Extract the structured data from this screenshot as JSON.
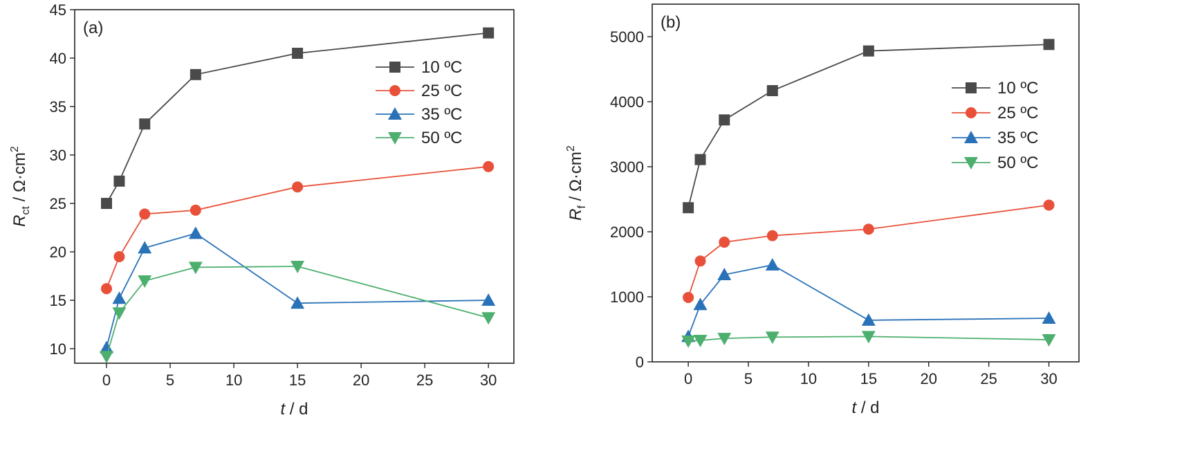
{
  "chart_data": [
    {
      "type": "line",
      "panel_label": "(a)",
      "ylabel": {
        "symbol": "R",
        "sub": "ct",
        "unit_prefix": " / Ω·cm",
        "sup": "2"
      },
      "xlabel": {
        "symbol": "t",
        "unit": " / d"
      },
      "xlim": [
        -2.5,
        32
      ],
      "ylim": [
        8.5,
        45
      ],
      "xticks": [
        0,
        5,
        10,
        15,
        20,
        25,
        30
      ],
      "yticks": [
        10,
        15,
        20,
        25,
        30,
        35,
        40,
        45
      ],
      "x": [
        0,
        1,
        3,
        7,
        15,
        30
      ],
      "legend_position": "top-right",
      "series": [
        {
          "name": "10 ºC",
          "color": "#4a4a4a",
          "marker": "square",
          "values": [
            25.0,
            27.3,
            33.2,
            38.3,
            40.5,
            42.6
          ]
        },
        {
          "name": "25 ºC",
          "color": "#e8503a",
          "marker": "circle",
          "values": [
            16.2,
            19.5,
            23.9,
            24.3,
            26.7,
            28.8
          ]
        },
        {
          "name": "35 ºC",
          "color": "#2a72b8",
          "marker": "triangle-up",
          "values": [
            10.1,
            15.2,
            20.4,
            21.9,
            14.7,
            15.0
          ]
        },
        {
          "name": "50 ºC",
          "color": "#4daf6e",
          "marker": "triangle-down",
          "values": [
            9.2,
            13.7,
            17.0,
            18.4,
            18.5,
            13.2
          ]
        }
      ]
    },
    {
      "type": "line",
      "panel_label": "(b)",
      "ylabel": {
        "symbol": "R",
        "sub": "f",
        "unit_prefix": " / Ω·cm",
        "sup": "2"
      },
      "xlabel": {
        "symbol": "t",
        "unit": " / d"
      },
      "xlim": [
        -3,
        32.5
      ],
      "ylim": [
        0,
        5500
      ],
      "xticks": [
        0,
        5,
        10,
        15,
        20,
        25,
        30
      ],
      "yticks": [
        0,
        1000,
        2000,
        3000,
        4000,
        5000
      ],
      "x": [
        0,
        1,
        3,
        7,
        15,
        30
      ],
      "legend_position": "top-right",
      "series": [
        {
          "name": "10 ºC",
          "color": "#4a4a4a",
          "marker": "square",
          "values": [
            2370,
            3110,
            3720,
            4170,
            4780,
            4880
          ]
        },
        {
          "name": "25 ºC",
          "color": "#e8503a",
          "marker": "circle",
          "values": [
            990,
            1550,
            1840,
            1940,
            2040,
            2410
          ]
        },
        {
          "name": "35 ºC",
          "color": "#2a72b8",
          "marker": "triangle-up",
          "values": [
            390,
            880,
            1340,
            1490,
            640,
            670
          ]
        },
        {
          "name": "50 ºC",
          "color": "#4daf6e",
          "marker": "triangle-down",
          "values": [
            320,
            330,
            360,
            380,
            390,
            340
          ]
        }
      ]
    }
  ]
}
